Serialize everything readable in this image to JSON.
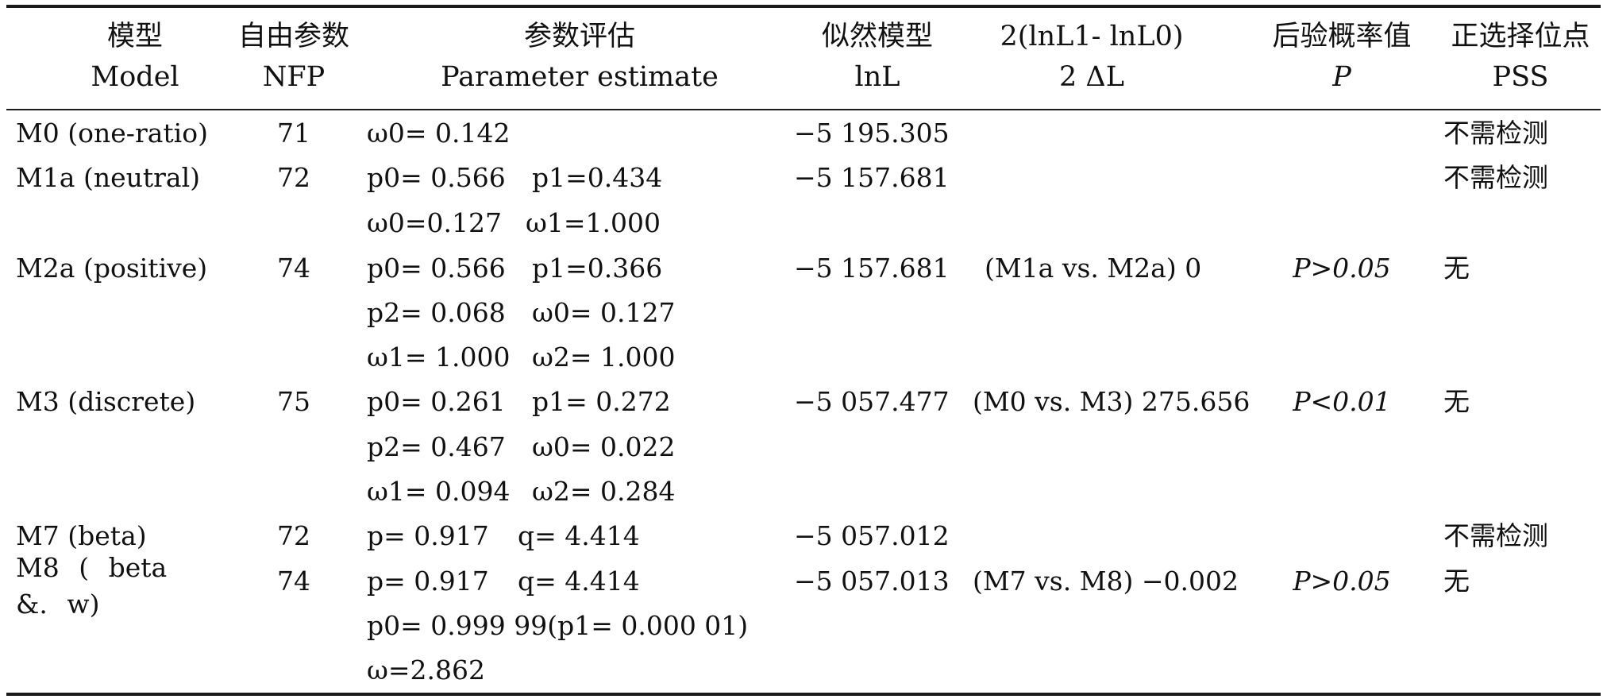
{
  "table": {
    "headers": [
      {
        "zh": "模型",
        "en": "Model"
      },
      {
        "zh": "自由参数",
        "en": "NFP"
      },
      {
        "zh": "参数评估",
        "en": "Parameter estimate"
      },
      {
        "zh": "似然模型",
        "en": "lnL"
      },
      {
        "zh": "2(lnL1- lnL0)",
        "en": "2 ΔL"
      },
      {
        "zh": "后验概率值",
        "en": "P"
      },
      {
        "zh": "正选择位点",
        "en": "PSS"
      }
    ],
    "rows": [
      {
        "model": "M0 (one-ratio)",
        "nfp": "71",
        "params": [
          [
            "ω0= 0.142"
          ]
        ],
        "lnl": "−5 195.305",
        "dl": "",
        "p": "",
        "pss": "不需检测"
      },
      {
        "model": "M1a (neutral)",
        "nfp": "72",
        "params": [
          [
            "p0= 0.566",
            "p1=0.434"
          ],
          [
            "ω0=0.127",
            "ω1=1.000"
          ]
        ],
        "lnl": "−5 157.681",
        "dl": "",
        "p": "",
        "pss": "不需检测"
      },
      {
        "model": "M2a (positive)",
        "nfp": "74",
        "params": [
          [
            "p0= 0.566",
            "p1=0.366"
          ],
          [
            "p2= 0.068",
            "ω0= 0.127"
          ],
          [
            "ω1= 1.000",
            "ω2= 1.000"
          ]
        ],
        "lnl": "−5 157.681",
        "dl": "(M1a vs. M2a) 0",
        "p": "P>0.05",
        "pss": "无"
      },
      {
        "model": "M3 (discrete)",
        "nfp": "75",
        "params": [
          [
            "p0= 0.261",
            "p1= 0.272"
          ],
          [
            "p2= 0.467",
            "ω0= 0.022"
          ],
          [
            "ω1= 0.094",
            "ω2= 0.284"
          ]
        ],
        "lnl": "−5 057.477",
        "dl": "(M0 vs. M3) 275.656",
        "p": "P<0.01",
        "pss": "无"
      },
      {
        "model": "M7 (beta)",
        "nfp": "72",
        "params": [
          [
            "p= 0.917",
            "q= 4.414"
          ]
        ],
        "lnl": "−5 057.012",
        "dl": "",
        "p": "",
        "pss": "不需检测"
      },
      {
        "model": "M8 ( beta &. w)",
        "nfp": "74",
        "params": [
          [
            "p= 0.917",
            "q= 4.414"
          ],
          [
            "p0= 0.999 99(p1= 0.000 01)"
          ],
          [
            "ω=2.862"
          ]
        ],
        "lnl": "−5 057.013",
        "dl": "(M7 vs. M8) −0.002",
        "p": "P>0.05",
        "pss": "无"
      }
    ]
  }
}
